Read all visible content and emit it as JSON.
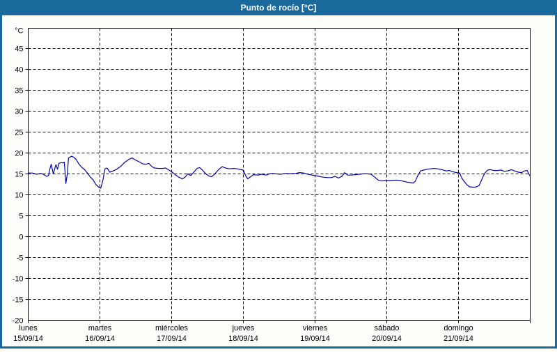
{
  "window": {
    "title": "Punto de rocío [°C]"
  },
  "colors": {
    "titlebar_bg": "#1a699c",
    "titlebar_text": "#ffffff",
    "frame_border": "#1a699c",
    "plot_bg": "#ffffff",
    "plot_border": "#000000",
    "grid": "#000000",
    "tick_text": "#000000",
    "line": "#0000b0"
  },
  "chart_data": {
    "type": "line",
    "title": "Punto de rocío [°C]",
    "y_unit_label": "°C",
    "ylim": [
      -20,
      49.8
    ],
    "y_gridlines": [
      45,
      40,
      35,
      30,
      25,
      20,
      15,
      10,
      5,
      0,
      -5,
      -10,
      -15
    ],
    "y_tick_labels": [
      45,
      40,
      35,
      30,
      25,
      20,
      15,
      10,
      5,
      0,
      -5,
      -10,
      -15,
      -20
    ],
    "grid_style": "dashed",
    "legend": "none",
    "x_axis": {
      "total_hours": 168,
      "hours_per_day": 24,
      "days": [
        {
          "name": "lunes",
          "date": "15/09/14"
        },
        {
          "name": "martes",
          "date": "16/09/14"
        },
        {
          "name": "miércoles",
          "date": "17/09/14"
        },
        {
          "name": "jueves",
          "date": "18/09/14"
        },
        {
          "name": "viernes",
          "date": "19/09/14"
        },
        {
          "name": "sábado",
          "date": "20/09/14"
        },
        {
          "name": "domingo",
          "date": "21/09/14"
        }
      ]
    },
    "series": [
      {
        "name": "Punto de rocío",
        "unit": "°C",
        "color": "#0000b0",
        "points_hours_values": [
          [
            0,
            15.2
          ],
          [
            1.4,
            15.2
          ],
          [
            2.8,
            14.9
          ],
          [
            4.2,
            15.1
          ],
          [
            5.1,
            14.9
          ],
          [
            6.1,
            14.4
          ],
          [
            6.8,
            14.6
          ],
          [
            7.2,
            16.0
          ],
          [
            7.7,
            17.3
          ],
          [
            8.4,
            15.0
          ],
          [
            8.9,
            16.3
          ],
          [
            9.3,
            17.2
          ],
          [
            9.8,
            16.1
          ],
          [
            10.3,
            17.5
          ],
          [
            11,
            17.7
          ],
          [
            11.7,
            17.6
          ],
          [
            12.1,
            17.8
          ],
          [
            12.6,
            12.7
          ],
          [
            13.1,
            15.0
          ],
          [
            13.5,
            18.8
          ],
          [
            14.5,
            19.2
          ],
          [
            15.2,
            19.0
          ],
          [
            16.1,
            18.4
          ],
          [
            17,
            17.3
          ],
          [
            18,
            16.5
          ],
          [
            18.9,
            16.0
          ],
          [
            19.8,
            15.2
          ],
          [
            20.8,
            14.2
          ],
          [
            21.7,
            13.6
          ],
          [
            22.6,
            12.5
          ],
          [
            23.6,
            11.8
          ],
          [
            24.3,
            11.6
          ],
          [
            25,
            13.5
          ],
          [
            25.7,
            16.2
          ],
          [
            26.4,
            16.4
          ],
          [
            27.3,
            15.4
          ],
          [
            28.5,
            15.7
          ],
          [
            29.6,
            16.1
          ],
          [
            31,
            16.8
          ],
          [
            32.4,
            17.8
          ],
          [
            33.8,
            18.5
          ],
          [
            34.8,
            18.8
          ],
          [
            35.9,
            18.3
          ],
          [
            37.1,
            17.9
          ],
          [
            38.3,
            17.4
          ],
          [
            39.4,
            17.3
          ],
          [
            40.4,
            17.5
          ],
          [
            41.3,
            16.8
          ],
          [
            42.2,
            16.4
          ],
          [
            43.6,
            16.3
          ],
          [
            45,
            16.3
          ],
          [
            46,
            16.4
          ],
          [
            47.1,
            15.9
          ],
          [
            48,
            15.5
          ],
          [
            49.2,
            14.8
          ],
          [
            50.4,
            14.2
          ],
          [
            51.6,
            13.8
          ],
          [
            52.5,
            14.2
          ],
          [
            53.4,
            15.0
          ],
          [
            54.4,
            14.6
          ],
          [
            55.3,
            15.3
          ],
          [
            56.5,
            16.3
          ],
          [
            57.4,
            16.5
          ],
          [
            58.3,
            15.9
          ],
          [
            59.3,
            15.1
          ],
          [
            60.4,
            14.5
          ],
          [
            61.4,
            14.3
          ],
          [
            62.5,
            15.0
          ],
          [
            63.7,
            16.0
          ],
          [
            64.9,
            16.7
          ],
          [
            66,
            16.4
          ],
          [
            67.4,
            16.2
          ],
          [
            68.8,
            16.3
          ],
          [
            70,
            16.2
          ],
          [
            71.2,
            16.0
          ],
          [
            72,
            15.9
          ],
          [
            72.8,
            14.5
          ],
          [
            73.5,
            13.8
          ],
          [
            74.4,
            14.3
          ],
          [
            75.4,
            14.8
          ],
          [
            76.8,
            14.7
          ],
          [
            78.2,
            14.9
          ],
          [
            79.6,
            14.7
          ],
          [
            81.2,
            15.1
          ],
          [
            82.8,
            15.0
          ],
          [
            84.5,
            14.9
          ],
          [
            86.1,
            15.1
          ],
          [
            87.7,
            15.0
          ],
          [
            89.4,
            15.1
          ],
          [
            90.8,
            15.3
          ],
          [
            92.2,
            15.2
          ],
          [
            93.6,
            14.9
          ],
          [
            95,
            14.7
          ],
          [
            96,
            14.6
          ],
          [
            97.3,
            14.4
          ],
          [
            98.7,
            14.2
          ],
          [
            100.1,
            14.1
          ],
          [
            101.5,
            14.1
          ],
          [
            102.7,
            14.4
          ],
          [
            103.8,
            14.0
          ],
          [
            105,
            14.4
          ],
          [
            105.9,
            15.3
          ],
          [
            106.9,
            14.7
          ],
          [
            108,
            14.7
          ],
          [
            109.4,
            14.8
          ],
          [
            110.8,
            14.9
          ],
          [
            112.2,
            15.0
          ],
          [
            113.6,
            15.0
          ],
          [
            114.8,
            14.9
          ],
          [
            116,
            14.2
          ],
          [
            117.1,
            13.5
          ],
          [
            118.3,
            13.3
          ],
          [
            119.5,
            13.4
          ],
          [
            120.4,
            13.4
          ],
          [
            121.6,
            13.4
          ],
          [
            123,
            13.5
          ],
          [
            124.4,
            13.4
          ],
          [
            125.8,
            13.2
          ],
          [
            126.9,
            13.0
          ],
          [
            127.9,
            12.9
          ],
          [
            128.8,
            12.8
          ],
          [
            129.5,
            13.2
          ],
          [
            130.4,
            14.6
          ],
          [
            131.3,
            15.7
          ],
          [
            132.3,
            15.9
          ],
          [
            133.4,
            16.1
          ],
          [
            134.6,
            16.2
          ],
          [
            135.8,
            16.3
          ],
          [
            137,
            16.2
          ],
          [
            138.4,
            16.0
          ],
          [
            139.8,
            15.7
          ],
          [
            141,
            15.8
          ],
          [
            142.1,
            15.5
          ],
          [
            143.3,
            15.3
          ],
          [
            144.4,
            15.2
          ],
          [
            145.1,
            14.0
          ],
          [
            145.8,
            13.3
          ],
          [
            146.8,
            12.4
          ],
          [
            147.7,
            11.9
          ],
          [
            148.9,
            11.8
          ],
          [
            150,
            11.9
          ],
          [
            150.9,
            12.2
          ],
          [
            151.9,
            13.8
          ],
          [
            152.8,
            15.2
          ],
          [
            153.8,
            15.9
          ],
          [
            154.7,
            16.0
          ],
          [
            155.9,
            15.8
          ],
          [
            157.1,
            15.8
          ],
          [
            158.2,
            15.9
          ],
          [
            159.4,
            15.6
          ],
          [
            160.5,
            15.7
          ],
          [
            161.7,
            16.0
          ],
          [
            162.8,
            15.7
          ],
          [
            164,
            15.4
          ],
          [
            165.1,
            15.3
          ],
          [
            166.1,
            15.7
          ],
          [
            167,
            15.8
          ],
          [
            167.6,
            14.9
          ],
          [
            168,
            14.4
          ]
        ]
      }
    ]
  }
}
